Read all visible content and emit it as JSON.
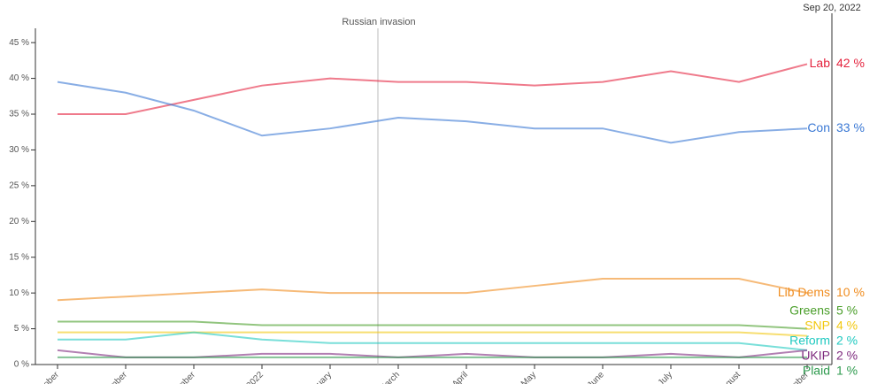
{
  "chart_data": {
    "type": "line",
    "annotation": "Russian invasion",
    "end_date": "Sep 20, 2022",
    "categories": [
      "ober",
      "ember",
      "ember",
      "2022",
      "ruary",
      "March",
      "April",
      "May",
      "June",
      "July",
      "August",
      "ember"
    ],
    "ylim": [
      0,
      47
    ],
    "yticks": [
      {
        "value": 0,
        "label": "0 %"
      },
      {
        "value": 5,
        "label": "5 %"
      },
      {
        "value": 10,
        "label": "10 %"
      },
      {
        "value": 15,
        "label": "15 %"
      },
      {
        "value": 20,
        "label": "20 %"
      },
      {
        "value": 25,
        "label": "25 %"
      },
      {
        "value": 30,
        "label": "30 %"
      },
      {
        "value": 35,
        "label": "35 %"
      },
      {
        "value": 40,
        "label": "40 %"
      },
      {
        "value": 45,
        "label": "45 %"
      }
    ],
    "series": [
      {
        "name": "Lab",
        "color": "#e4223d",
        "values": [
          35,
          35,
          37,
          39,
          40,
          39.5,
          39.5,
          39,
          39.5,
          41,
          39.5,
          42
        ],
        "value_labels": [
          null,
          null,
          null,
          null,
          null,
          null,
          null,
          null,
          null,
          null,
          null,
          "42 %"
        ]
      },
      {
        "name": "Con",
        "color": "#3a78d4",
        "values": [
          39.5,
          38,
          35.5,
          32,
          33,
          34.5,
          34,
          33,
          33,
          31,
          32.5,
          33
        ],
        "value_labels": [
          null,
          null,
          null,
          null,
          null,
          null,
          null,
          null,
          null,
          null,
          null,
          "33 %"
        ]
      },
      {
        "name": "Lib Dems",
        "color": "#f08c1e",
        "values": [
          9,
          9.5,
          10,
          10.5,
          10,
          10,
          10,
          11,
          12,
          12,
          12,
          10
        ],
        "value_labels": [
          null,
          null,
          null,
          null,
          null,
          null,
          null,
          null,
          null,
          null,
          null,
          "10 %"
        ]
      },
      {
        "name": "Greens",
        "color": "#4a9e2a",
        "values": [
          6,
          6,
          6,
          5.5,
          5.5,
          5.5,
          5.5,
          5.5,
          5.5,
          5.5,
          5.5,
          5
        ],
        "value_labels": [
          null,
          null,
          null,
          null,
          null,
          null,
          null,
          null,
          null,
          null,
          null,
          "5 %"
        ]
      },
      {
        "name": "SNP",
        "color": "#f2c811",
        "values": [
          4.5,
          4.5,
          4.5,
          4.5,
          4.5,
          4.5,
          4.5,
          4.5,
          4.5,
          4.5,
          4.5,
          4
        ],
        "value_labels": [
          null,
          null,
          null,
          null,
          null,
          null,
          null,
          null,
          null,
          null,
          null,
          "4 %"
        ]
      },
      {
        "name": "Reform",
        "color": "#1fc9c0",
        "values": [
          3.5,
          3.5,
          4.5,
          3.5,
          3,
          3,
          3,
          3,
          3,
          3,
          3,
          2
        ],
        "value_labels": [
          null,
          null,
          null,
          null,
          null,
          null,
          null,
          null,
          null,
          null,
          null,
          "2 %"
        ]
      },
      {
        "name": "UKIP",
        "color": "#7e2a7e",
        "values": [
          2,
          1,
          1,
          1.5,
          1.5,
          1,
          1.5,
          1,
          1,
          1.5,
          1,
          2
        ],
        "value_labels": [
          null,
          null,
          null,
          null,
          null,
          null,
          null,
          null,
          null,
          null,
          null,
          "2 %"
        ]
      },
      {
        "name": "Plaid",
        "color": "#2e9a4e",
        "values": [
          1,
          1,
          1,
          1,
          1,
          1,
          1,
          1,
          1,
          1,
          1,
          1
        ],
        "value_labels": [
          null,
          null,
          null,
          null,
          null,
          null,
          null,
          null,
          null,
          null,
          null,
          "1 %"
        ]
      }
    ]
  }
}
